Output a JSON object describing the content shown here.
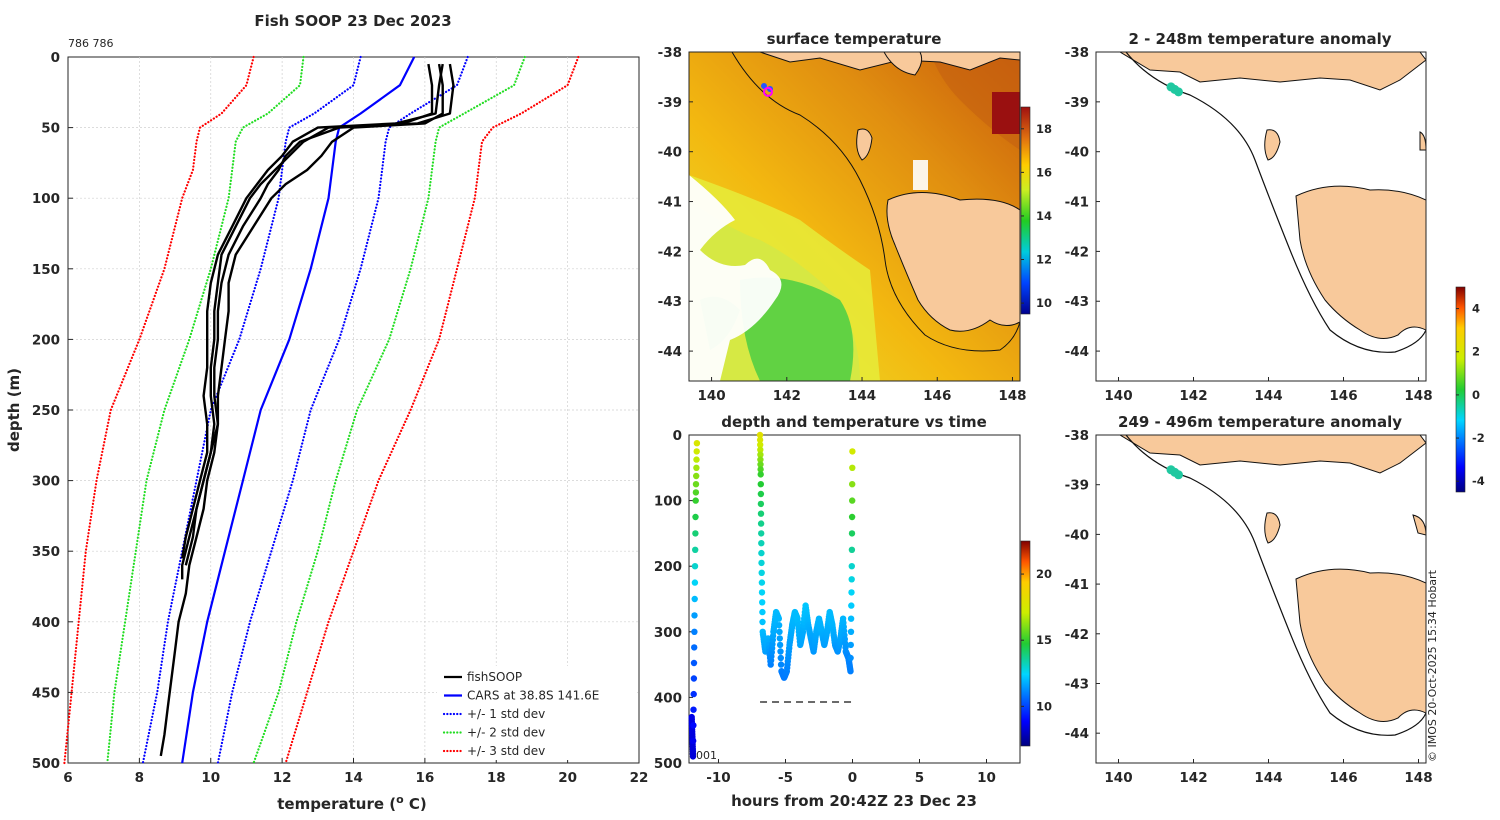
{
  "chart_data": [
    {
      "type": "line",
      "title": "Fish SOOP 23 Dec 2023",
      "corner_label": "786 786",
      "xlabel": "temperature (",
      "xlabel_sup": "o",
      "xlabel_end": " C)",
      "ylabel": "depth (m)",
      "xlim": [
        6,
        22
      ],
      "ylim": [
        500,
        0
      ],
      "x_ticks": [
        "6",
        "8",
        "10",
        "12",
        "14",
        "16",
        "18",
        "20",
        "22"
      ],
      "y_ticks": [
        "0",
        "50",
        "100",
        "150",
        "200",
        "250",
        "300",
        "350",
        "400",
        "450",
        "500"
      ],
      "legend": [
        {
          "label": "fishSOOP",
          "color": "#000000",
          "style": "solid"
        },
        {
          "label": "CARS at 38.8S 141.6E",
          "color": "#0000ff",
          "style": "solid"
        },
        {
          "label": "+/- 1 std dev",
          "color": "#0000ff",
          "style": "dotted"
        },
        {
          "label": "+/- 2 std dev",
          "color": "#22dd22",
          "style": "dotted"
        },
        {
          "label": "+/- 3 std dev",
          "color": "#ff0000",
          "style": "dotted"
        }
      ],
      "cars_mean": {
        "depth": [
          0,
          20,
          40,
          50,
          60,
          80,
          100,
          150,
          200,
          250,
          300,
          350,
          400,
          450,
          500
        ],
        "temp": [
          15.7,
          15.3,
          14.2,
          13.6,
          13.5,
          13.4,
          13.3,
          12.8,
          12.2,
          11.4,
          10.9,
          10.4,
          9.9,
          9.5,
          9.2
        ]
      },
      "std1": {
        "minus": [
          14.2,
          14.0,
          12.9,
          12.2,
          12.1,
          12.0,
          11.9,
          11.4,
          10.8,
          10.0,
          9.6,
          9.2,
          8.8,
          8.5,
          8.1
        ],
        "plus": [
          17.2,
          16.9,
          15.6,
          15.0,
          14.9,
          14.8,
          14.7,
          14.2,
          13.6,
          12.8,
          12.3,
          11.7,
          11.1,
          10.6,
          10.2
        ]
      },
      "std2": {
        "minus": [
          12.6,
          12.5,
          11.6,
          10.9,
          10.7,
          10.6,
          10.5,
          10.0,
          9.4,
          8.7,
          8.2,
          7.9,
          7.6,
          7.3,
          7.1
        ],
        "plus": [
          18.8,
          18.5,
          17.1,
          16.4,
          16.3,
          16.2,
          16.1,
          15.6,
          15.0,
          14.1,
          13.5,
          13.0,
          12.4,
          11.9,
          11.2
        ]
      },
      "std3": {
        "minus": [
          11.2,
          11.0,
          10.3,
          9.7,
          9.6,
          9.5,
          9.2,
          8.7,
          8.0,
          7.2,
          6.8,
          6.5,
          6.3,
          6.1,
          5.9
        ],
        "plus": [
          20.3,
          20.0,
          18.7,
          17.9,
          17.6,
          17.5,
          17.4,
          16.9,
          16.4,
          15.6,
          14.7,
          14.0,
          13.3,
          12.7,
          12.1
        ]
      },
      "fishsoop_profiles": [
        {
          "depth": [
            5,
            20,
            40,
            47,
            50,
            60,
            70,
            80,
            90,
            100,
            120,
            140,
            160,
            180,
            200,
            220,
            240,
            260,
            280,
            300,
            320,
            340,
            360,
            380,
            400,
            420,
            440,
            460,
            480,
            495
          ],
          "temp": [
            16.4,
            16.5,
            16.5,
            16.0,
            14.0,
            13.4,
            13.1,
            12.7,
            12.1,
            11.7,
            11.2,
            10.7,
            10.5,
            10.5,
            10.4,
            10.3,
            10.2,
            10.2,
            10.1,
            9.9,
            9.8,
            9.6,
            9.4,
            9.3,
            9.1,
            9.0,
            8.9,
            8.8,
            8.7,
            8.6
          ]
        },
        {
          "depth": [
            5,
            20,
            40,
            47,
            50,
            60,
            70,
            80,
            90,
            100,
            120,
            140,
            160,
            180,
            200,
            220,
            240,
            260,
            280,
            300,
            320,
            340,
            360,
            370
          ],
          "temp": [
            16.1,
            16.2,
            16.2,
            15.4,
            13.3,
            12.6,
            12.2,
            11.8,
            11.4,
            11.1,
            10.7,
            10.3,
            10.2,
            10.1,
            10.1,
            10.0,
            10.0,
            10.1,
            10.0,
            9.8,
            9.6,
            9.4,
            9.2,
            9.2
          ]
        },
        {
          "depth": [
            5,
            20,
            40,
            47,
            50,
            60,
            70,
            80,
            90,
            100,
            120,
            140,
            160,
            180,
            200,
            220,
            240,
            260,
            280,
            300,
            320,
            340,
            360
          ],
          "temp": [
            16.7,
            16.8,
            16.7,
            15.8,
            13.6,
            12.5,
            12.1,
            11.9,
            11.6,
            11.4,
            10.9,
            10.5,
            10.3,
            10.2,
            10.2,
            10.1,
            10.1,
            10.2,
            10.0,
            9.8,
            9.6,
            9.5,
            9.3
          ]
        },
        {
          "depth": [
            5,
            20,
            40,
            47,
            50,
            60,
            70,
            80,
            90,
            100,
            120,
            140,
            160,
            180,
            200,
            220,
            240,
            260,
            280,
            300,
            320,
            340,
            355
          ],
          "temp": [
            16.5,
            16.4,
            16.3,
            15.2,
            13.0,
            12.3,
            12.0,
            11.6,
            11.3,
            11.0,
            10.6,
            10.2,
            10.0,
            9.9,
            9.9,
            9.9,
            9.8,
            9.9,
            9.9,
            9.7,
            9.5,
            9.3,
            9.2
          ]
        }
      ]
    },
    {
      "type": "heatmap",
      "title": "surface temperature",
      "lon_ticks": [
        "140",
        "142",
        "144",
        "146",
        "148"
      ],
      "lat_ticks": [
        "-38",
        "-39",
        "-40",
        "-41",
        "-42",
        "-43",
        "-44"
      ],
      "lon_range": [
        139.4,
        148.2
      ],
      "lat_range": [
        -44.6,
        -38.0
      ],
      "colorbar": {
        "ticks": [
          "10",
          "12",
          "14",
          "16",
          "18"
        ],
        "range": [
          9.5,
          19
        ]
      },
      "vessel_position": {
        "lon": 141.5,
        "lat": -38.8
      }
    },
    {
      "type": "scatter",
      "title": "depth and temperature vs time",
      "xlabel": "hours from 20:42Z 23 Dec 23",
      "x_ticks": [
        "-10",
        "-5",
        "0",
        "5",
        "10"
      ],
      "y_ticks": [
        "0",
        "100",
        "200",
        "300",
        "400",
        "500"
      ],
      "xlim": [
        -12.2,
        12.5
      ],
      "ylim": [
        500,
        0
      ],
      "annotation": "001",
      "colorbar": {
        "ticks": [
          "10",
          "15",
          "20"
        ],
        "range": [
          7,
          22.5
        ]
      },
      "reference_depth": 407,
      "segments": [
        {
          "hours": [
            -12,
            -11.95,
            -11.9,
            -11.8,
            -11.7,
            -11.6
          ],
          "depth": [
            430,
            460,
            490,
            300,
            100,
            0
          ],
          "temp": [
            8.5,
            8.4,
            8.3,
            11,
            15,
            18
          ]
        },
        {
          "hours": [
            -6.9,
            -6.85,
            -6.8,
            -6.7,
            -6.5,
            -6.3,
            -6.1,
            -5.9,
            -5.7,
            -5.5,
            -5.3,
            -5.1,
            -4.9,
            -4.7,
            -4.5,
            -4.3,
            -4.1,
            -3.9,
            -3.7,
            -3.5,
            -3.3,
            -3.1,
            -2.9,
            -2.7,
            -2.5,
            -2.3,
            -2.1,
            -1.9,
            -1.7,
            -1.5,
            -1.3,
            -1.1,
            -0.9,
            -0.7,
            -0.5,
            -0.3,
            -0.15,
            -0.05,
            0
          ],
          "depth": [
            0,
            60,
            180,
            300,
            330,
            310,
            350,
            300,
            270,
            280,
            360,
            370,
            360,
            320,
            290,
            270,
            280,
            320,
            300,
            260,
            290,
            310,
            330,
            300,
            280,
            300,
            320,
            300,
            270,
            290,
            320,
            330,
            310,
            280,
            330,
            340,
            360,
            200,
            0
          ],
          "temp": [
            18,
            15,
            13,
            12,
            11.5,
            11.8,
            11,
            11.7,
            12,
            11.9,
            11,
            10.9,
            11,
            11.5,
            11.8,
            12,
            12,
            11.6,
            11.7,
            12.2,
            11.8,
            11.6,
            11.4,
            11.7,
            11.9,
            11.8,
            11.5,
            11.7,
            12,
            11.9,
            11.5,
            11.3,
            11.6,
            11.9,
            11.3,
            11.1,
            11,
            13,
            18
          ]
        }
      ]
    },
    {
      "type": "heatmap",
      "title": "2 - 248m temperature anomaly",
      "lon_ticks": [
        "140",
        "142",
        "144",
        "146",
        "148"
      ],
      "lat_ticks": [
        "-38",
        "-39",
        "-40",
        "-41",
        "-42",
        "-43",
        "-44"
      ],
      "anomaly_points": [
        {
          "lon": 141.4,
          "lat": -38.7
        },
        {
          "lon": 141.5,
          "lat": -38.75
        },
        {
          "lon": 141.6,
          "lat": -38.8
        }
      ]
    },
    {
      "type": "heatmap",
      "title": "249 - 496m temperature anomaly",
      "lon_ticks": [
        "140",
        "142",
        "144",
        "146",
        "148"
      ],
      "lat_ticks": [
        "-38",
        "-39",
        "-40",
        "-41",
        "-42",
        "-43",
        "-44"
      ],
      "anomaly_points": [
        {
          "lon": 141.4,
          "lat": -38.7
        },
        {
          "lon": 141.5,
          "lat": -38.75
        },
        {
          "lon": 141.6,
          "lat": -38.8
        }
      ],
      "colorbar": {
        "ticks": [
          "4",
          "2",
          "0",
          "-2",
          "-4"
        ],
        "range": [
          -4.5,
          5
        ]
      }
    }
  ],
  "credit": "© IMOS 20-Oct-2025 15:34 Hobart"
}
